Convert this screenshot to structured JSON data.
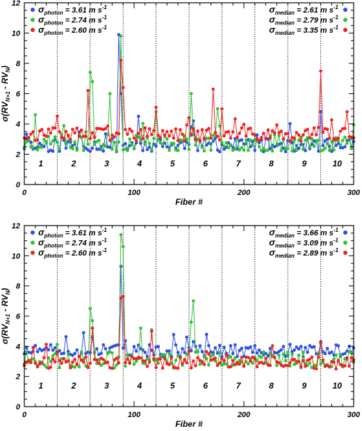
{
  "chart_data": [
    {
      "type": "scatter",
      "xlabel": "Fiber #",
      "ylabel_main": "σ(RV",
      "ylabel_sub": "N+1",
      "ylabel_mid": " - RV",
      "ylabel_sub2": "N",
      "ylabel_end": ")",
      "xlim": [
        0,
        300
      ],
      "ylim": [
        0,
        12
      ],
      "xticks": [
        "0",
        "100",
        "200",
        "300"
      ],
      "yticks": [
        "0",
        "2",
        "4",
        "6",
        "8",
        "10",
        "12"
      ],
      "group_boundaries": [
        30,
        60,
        90,
        120,
        150,
        180,
        210,
        240,
        270
      ],
      "group_labels": [
        "1",
        "2",
        "3",
        "4",
        "5",
        "6",
        "7",
        "8",
        "9",
        "10"
      ],
      "legend_left": [
        {
          "sym": "σ",
          "sub": "photon",
          "val": " = 3.61 m s",
          "sup": "-1",
          "color": "#2a4fe8"
        },
        {
          "sym": "σ",
          "sub": "photon",
          "val": " = 2.74 m s",
          "sup": "-1",
          "color": "#33c033"
        },
        {
          "sym": "σ",
          "sub": "photon",
          "val": " = 2.60 m s",
          "sup": "-1",
          "color": "#ee2222"
        }
      ],
      "legend_right": [
        {
          "sym": "σ",
          "sub": "median",
          "val": " = 2.61 m s",
          "sup": "-1",
          "color": "#2a4fe8"
        },
        {
          "sym": "σ",
          "sub": "median",
          "val": " = 2.79 m s",
          "sup": "-1",
          "color": "#33c033"
        },
        {
          "sym": "σ",
          "sub": "median",
          "val": " = 3.35 m s",
          "sup": "-1",
          "color": "#ee2222"
        }
      ],
      "series": [
        {
          "color": "#2a4fe8",
          "base": 2.6,
          "spread": 0.45,
          "seed": 11,
          "peaks": [
            [
              87,
              9.9
            ],
            [
              88,
              6.0
            ],
            [
              104,
              4.5
            ],
            [
              155,
              4.2
            ],
            [
              270,
              4.8
            ]
          ]
        },
        {
          "color": "#33c033",
          "base": 2.75,
          "spread": 0.55,
          "seed": 23,
          "peaks": [
            [
              10,
              4.6
            ],
            [
              60,
              7.4
            ],
            [
              62,
              6.8
            ],
            [
              79,
              6.0
            ],
            [
              89,
              9.8
            ],
            [
              152,
              6.0
            ],
            [
              176,
              5.0
            ],
            [
              121,
              4.8
            ]
          ]
        },
        {
          "color": "#ee2222",
          "base": 3.3,
          "spread": 0.45,
          "seed": 37,
          "peaks": [
            [
              59,
              6.2
            ],
            [
              89,
              8.2
            ],
            [
              91,
              6.4
            ],
            [
              120,
              5.1
            ],
            [
              172,
              6.3
            ],
            [
              181,
              5.0
            ],
            [
              270,
              7.5
            ],
            [
              295,
              4.8
            ]
          ]
        }
      ]
    },
    {
      "type": "scatter",
      "xlabel": "Fiber #",
      "ylabel_main": "σ(RV",
      "ylabel_sub": "N+1",
      "ylabel_mid": " - RV",
      "ylabel_sub2": "N",
      "ylabel_end": ")",
      "xlim": [
        0,
        300
      ],
      "ylim": [
        0,
        12
      ],
      "xticks": [
        "0",
        "100",
        "200",
        "300"
      ],
      "yticks": [
        "0",
        "2",
        "4",
        "6",
        "8",
        "10",
        "12"
      ],
      "group_boundaries": [
        30,
        60,
        90,
        120,
        150,
        180,
        210,
        240,
        270
      ],
      "group_labels": [
        "1",
        "2",
        "3",
        "4",
        "5",
        "6",
        "7",
        "8",
        "9",
        "10"
      ],
      "legend_left": [
        {
          "sym": "σ",
          "sub": "photon",
          "val": " = 3.61 m s",
          "sup": "-1",
          "color": "#2a4fe8"
        },
        {
          "sym": "σ",
          "sub": "photon",
          "val": " = 2.74 m s",
          "sup": "-1",
          "color": "#33c033"
        },
        {
          "sym": "σ",
          "sub": "photon",
          "val": " = 2.60 m s",
          "sup": "-1",
          "color": "#ee2222"
        }
      ],
      "legend_right": [
        {
          "sym": "σ",
          "sub": "median",
          "val": " = 3.66 m s",
          "sup": "-1",
          "color": "#2a4fe8"
        },
        {
          "sym": "σ",
          "sub": "median",
          "val": " = 3.09 m s",
          "sup": "-1",
          "color": "#33c033"
        },
        {
          "sym": "σ",
          "sub": "median",
          "val": " = 2.89 m s",
          "sup": "-1",
          "color": "#ee2222"
        }
      ],
      "series": [
        {
          "color": "#2a4fe8",
          "base": 3.7,
          "spread": 0.4,
          "seed": 51,
          "peaks": [
            [
              89,
              9.3
            ],
            [
              55,
              4.9
            ],
            [
              148,
              4.6
            ],
            [
              270,
              4.3
            ]
          ]
        },
        {
          "color": "#33c033",
          "base": 3.1,
          "spread": 0.55,
          "seed": 63,
          "peaks": [
            [
              60,
              6.5
            ],
            [
              63,
              5.7
            ],
            [
              89,
              11.4
            ],
            [
              90,
              10.6
            ],
            [
              107,
              5.2
            ],
            [
              117,
              5.1
            ],
            [
              154,
              7.0
            ],
            [
              152,
              5.6
            ]
          ]
        },
        {
          "color": "#ee2222",
          "base": 2.9,
          "spread": 0.4,
          "seed": 77,
          "peaks": [
            [
              62,
              5.2
            ],
            [
              89,
              7.2
            ],
            [
              91,
              7.3
            ],
            [
              116,
              5.0
            ],
            [
              270,
              4.2
            ]
          ]
        }
      ]
    }
  ]
}
